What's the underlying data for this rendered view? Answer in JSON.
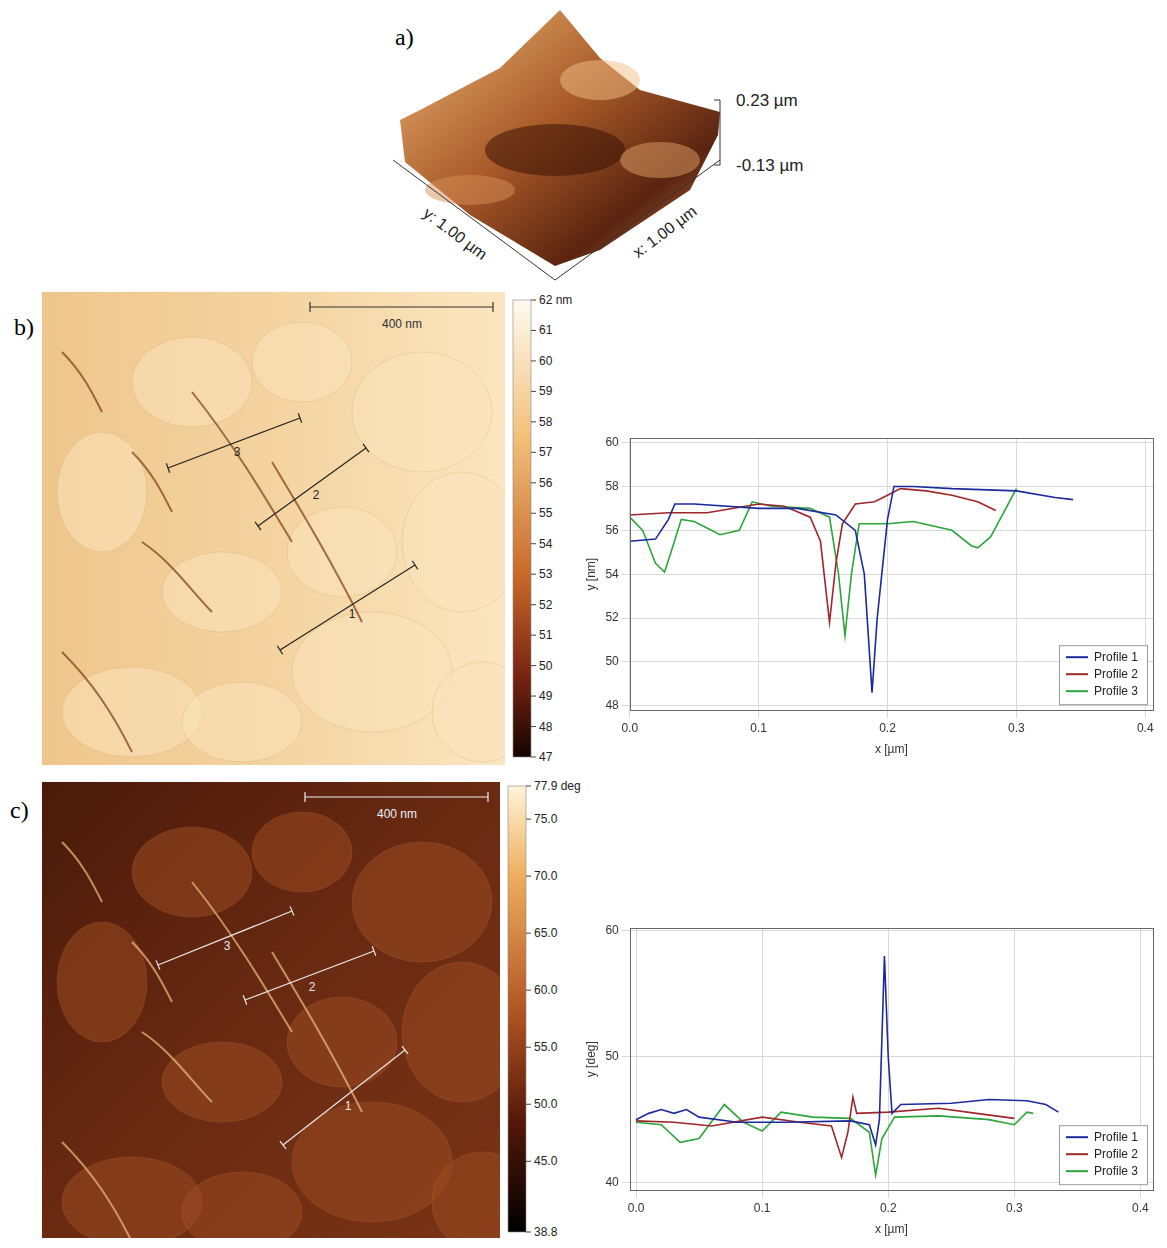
{
  "figure": {
    "a": {
      "panel": "a)",
      "z_range": [
        {
          "value": 0.23,
          "label": "0.23 µm"
        },
        {
          "value": -0.13,
          "label": "-0.13 µm"
        }
      ],
      "x_label": "x: 1.00 µm",
      "y_label": "y: 1.00 µm"
    },
    "b": {
      "panel": "b)",
      "scale_bar": "400 nm",
      "profile_labels": [
        "1",
        "2",
        "3"
      ],
      "colorbar": {
        "range": [
          47,
          62
        ],
        "ticks": [
          47,
          48,
          49,
          50,
          51,
          52,
          53,
          54,
          55,
          56,
          57,
          58,
          59,
          60,
          61,
          {
            "value": 62,
            "label": "62 nm"
          }
        ]
      }
    },
    "c": {
      "panel": "c)",
      "scale_bar": "400 nm",
      "profile_labels": [
        "1",
        "2",
        "3"
      ],
      "colorbar": {
        "range": [
          38.8,
          77.9
        ],
        "ticks": [
          38.8,
          {
            "value": 45,
            "label": "45.0"
          },
          {
            "value": 50,
            "label": "50.0"
          },
          {
            "value": 55,
            "label": "55.0"
          },
          {
            "value": 60,
            "label": "60.0"
          },
          {
            "value": 65,
            "label": "65.0"
          },
          {
            "value": 70,
            "label": "70.0"
          },
          {
            "value": 75,
            "label": "75.0"
          },
          {
            "value": 77.9,
            "label": "77.9 deg"
          }
        ]
      }
    }
  },
  "chart_data": [
    {
      "type": "line",
      "x_label": "x [µm]",
      "y_label": "y [nm]",
      "xlim": [
        0,
        0.406
      ],
      "ylim": [
        47.8,
        60.2
      ],
      "xticks": [
        {
          "value": 0,
          "label": "0.0"
        },
        0.1,
        0.2,
        0.3,
        0.4
      ],
      "yticks": [
        48,
        50,
        52,
        54,
        56,
        58,
        60
      ],
      "grid": true,
      "legend": "lower right",
      "series": [
        {
          "name": "Profile 1",
          "color": "#1c2a9e",
          "x": [
            0,
            0.02,
            0.03,
            0.035,
            0.05,
            0.1,
            0.13,
            0.16,
            0.175,
            0.182,
            0.188,
            0.192,
            0.2,
            0.205,
            0.22,
            0.25,
            0.3,
            0.33,
            0.344
          ],
          "values": [
            55.5,
            55.6,
            56.5,
            57.2,
            57.2,
            57.0,
            57.0,
            56.7,
            56.0,
            54.0,
            48.6,
            52.0,
            56.5,
            58.0,
            58.0,
            57.9,
            57.8,
            57.5,
            57.4
          ]
        },
        {
          "name": "Profile 2",
          "color": "#a0262b",
          "x": [
            0,
            0.03,
            0.06,
            0.09,
            0.1,
            0.12,
            0.14,
            0.148,
            0.155,
            0.16,
            0.165,
            0.175,
            0.19,
            0.2,
            0.21,
            0.23,
            0.25,
            0.27,
            0.284
          ],
          "values": [
            56.7,
            56.8,
            56.8,
            57.1,
            57.2,
            57.1,
            56.6,
            55.5,
            51.8,
            54.5,
            56.3,
            57.2,
            57.3,
            57.6,
            57.9,
            57.8,
            57.6,
            57.3,
            56.9
          ]
        },
        {
          "name": "Profile 3",
          "color": "#2ca53a",
          "x": [
            0,
            0.01,
            0.02,
            0.027,
            0.032,
            0.04,
            0.05,
            0.07,
            0.085,
            0.095,
            0.11,
            0.14,
            0.155,
            0.162,
            0.167,
            0.172,
            0.178,
            0.2,
            0.22,
            0.25,
            0.265,
            0.27,
            0.28,
            0.29,
            0.3
          ],
          "values": [
            56.6,
            56.0,
            54.5,
            54.1,
            55.0,
            56.5,
            56.4,
            55.8,
            56.0,
            57.3,
            57.1,
            57.0,
            56.6,
            54.0,
            51.2,
            54.0,
            56.3,
            56.3,
            56.4,
            56.0,
            55.3,
            55.2,
            55.7,
            56.8,
            57.9
          ]
        }
      ]
    },
    {
      "type": "line",
      "x_label": "x [µm]",
      "y_label": "y [deg]",
      "xlim": [
        -0.005,
        0.41
      ],
      "ylim": [
        39.4,
        60.2
      ],
      "xticks": [
        {
          "value": 0,
          "label": "0.0"
        },
        0.1,
        0.2,
        0.3,
        0.4
      ],
      "yticks": [
        40,
        50,
        60
      ],
      "grid": true,
      "legend": "lower right",
      "series": [
        {
          "name": "Profile 1",
          "color": "#1c2a9e",
          "x": [
            0,
            0.01,
            0.02,
            0.03,
            0.04,
            0.05,
            0.08,
            0.12,
            0.17,
            0.185,
            0.19,
            0.193,
            0.197,
            0.2,
            0.203,
            0.21,
            0.25,
            0.28,
            0.31,
            0.325,
            0.335
          ],
          "values": [
            45.0,
            45.5,
            45.8,
            45.5,
            45.8,
            45.2,
            44.8,
            44.8,
            44.9,
            44.6,
            43.0,
            45.0,
            58.0,
            50.0,
            45.5,
            46.2,
            46.3,
            46.6,
            46.5,
            46.2,
            45.6
          ]
        },
        {
          "name": "Profile 2",
          "color": "#a0262b",
          "x": [
            0,
            0.03,
            0.06,
            0.1,
            0.13,
            0.155,
            0.163,
            0.168,
            0.172,
            0.175,
            0.2,
            0.24,
            0.27,
            0.3
          ],
          "values": [
            44.9,
            44.8,
            44.5,
            45.2,
            44.8,
            44.5,
            42.0,
            44.0,
            46.8,
            45.5,
            45.6,
            45.9,
            45.5,
            45.1
          ]
        },
        {
          "name": "Profile 3",
          "color": "#2ca53a",
          "x": [
            0,
            0.02,
            0.035,
            0.05,
            0.07,
            0.085,
            0.1,
            0.115,
            0.14,
            0.17,
            0.185,
            0.19,
            0.195,
            0.205,
            0.24,
            0.28,
            0.3,
            0.31,
            0.315
          ],
          "values": [
            44.8,
            44.6,
            43.2,
            43.5,
            46.2,
            44.8,
            44.1,
            45.6,
            45.2,
            45.1,
            44.0,
            40.6,
            43.5,
            45.2,
            45.3,
            45.0,
            44.6,
            45.6,
            45.5
          ]
        }
      ]
    }
  ]
}
